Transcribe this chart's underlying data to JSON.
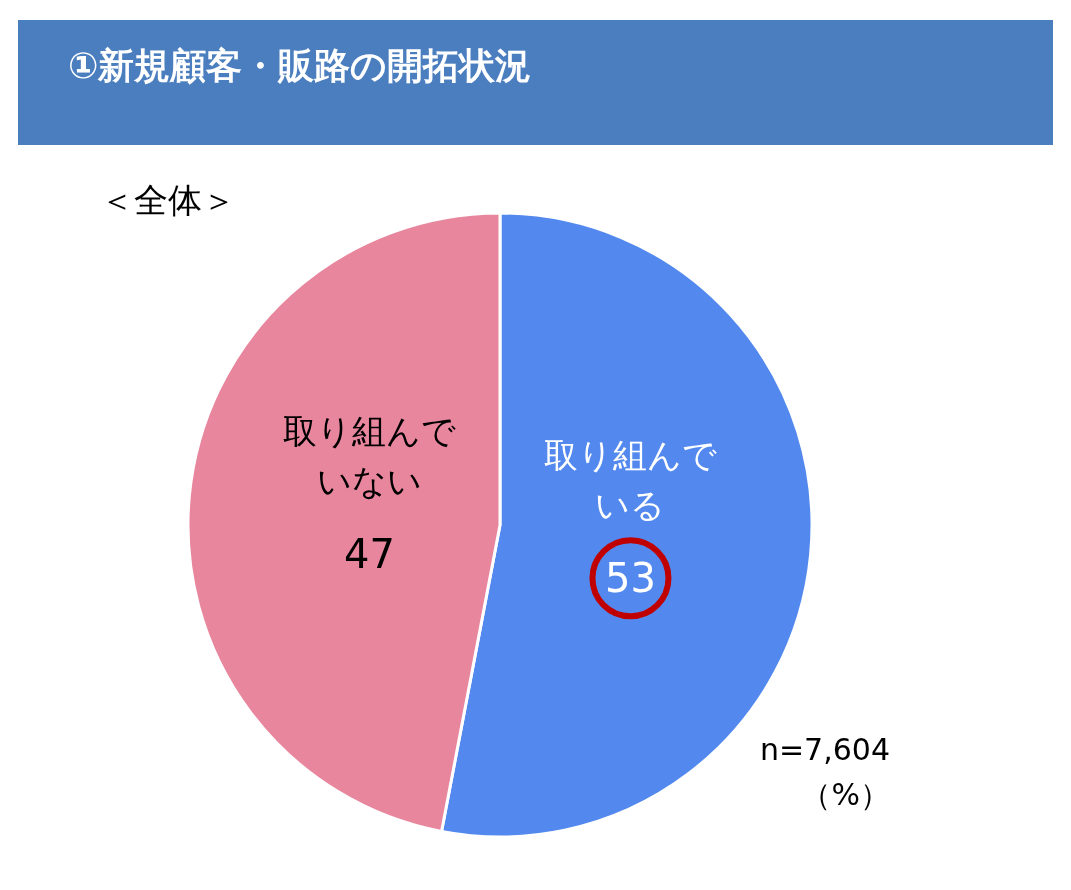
{
  "chart_data": {
    "type": "pie",
    "title": "①新規顧客・販路の開拓状況",
    "subtitle": "＜全体＞",
    "categories": [
      "取り組んでいる",
      "取り組んでいない"
    ],
    "values": [
      53,
      47
    ],
    "colors": [
      "#5389ee",
      "#e8869e"
    ],
    "data_labels": true,
    "annotations": [
      "n=7,604",
      "（%）"
    ]
  }
}
